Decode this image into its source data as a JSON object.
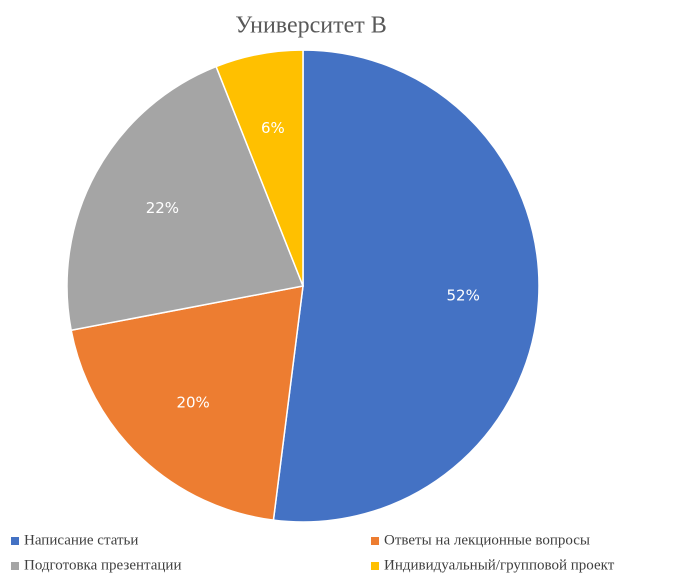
{
  "chart_data": {
    "type": "pie",
    "title": "Университет В",
    "categories": [
      "Написание статьи",
      "Ответы на лекционные вопросы",
      "Подготовка презентации",
      "Индивидуальный/групповой проект"
    ],
    "values": [
      52,
      20,
      22,
      6
    ],
    "value_labels": [
      "52%",
      "20%",
      "22%",
      "6%"
    ],
    "colors": [
      "#4472c4",
      "#ed7d31",
      "#a5a5a5",
      "#ffc000"
    ],
    "legend": "bottom"
  }
}
